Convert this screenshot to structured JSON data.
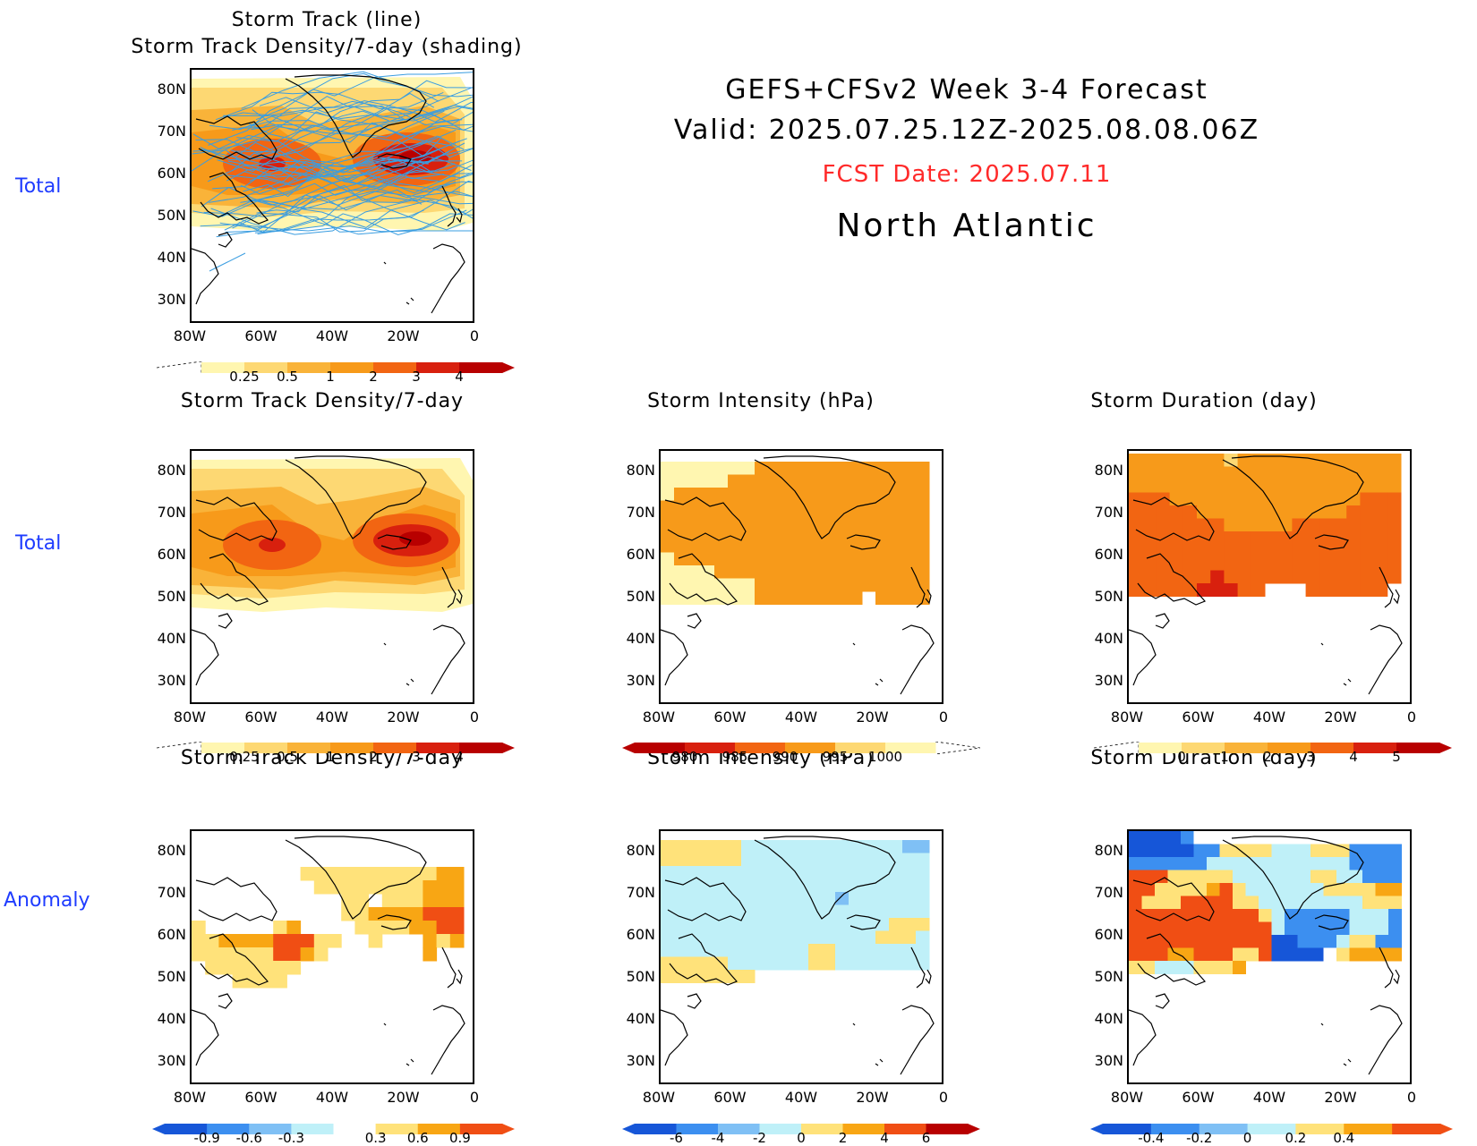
{
  "header": {
    "line1": "GEFS+CFSv2 Week 3-4 Forecast",
    "line2": "Valid: 2025.07.25.12Z-2025.08.08.06Z",
    "fcst": "FCST Date: 2025.07.11",
    "region": "North Atlantic"
  },
  "row_labels": {
    "r1": "Total",
    "r2": "Total",
    "r3": "Anomaly"
  },
  "axes": {
    "lat": [
      "80N",
      "70N",
      "60N",
      "50N",
      "40N",
      "30N"
    ],
    "lon": [
      "80W",
      "60W",
      "40W",
      "20W",
      "0"
    ]
  },
  "panels": {
    "p1": {
      "title1": "Storm Track (line)",
      "title2": "Storm Track Density/7-day (shading)"
    },
    "p2": {
      "title": "Storm Track Density/7-day"
    },
    "p3": {
      "title": "Storm Intensity (hPa)"
    },
    "p4": {
      "title": "Storm Duration (day)"
    },
    "p5": {
      "title": "Storm Track Density/7-day"
    },
    "p6": {
      "title": "Storm Intensity (hPa)"
    },
    "p7": {
      "title": "Storm Duration (day)"
    }
  },
  "colorbars": {
    "density": [
      "0.25",
      "0.5",
      "1",
      "2",
      "3",
      "4"
    ],
    "intensity": [
      "980",
      "985",
      "990",
      "995",
      "1000"
    ],
    "duration": [
      "0",
      "1",
      "2",
      "3",
      "4",
      "5"
    ],
    "density_anom": [
      "-0.9",
      "-0.6",
      "-0.3",
      "0.3",
      "0.6",
      "0.9"
    ],
    "intensity_anom": [
      "-6",
      "-4",
      "-2",
      "0",
      "2",
      "4",
      "6"
    ],
    "duration_anom": [
      "-0.4",
      "-0.2",
      "0",
      "0.2",
      "0.4"
    ]
  },
  "colors": {
    "total_scale": [
      "#fff6b0",
      "#fdd873",
      "#f9b339",
      "#f79a1a",
      "#f26512",
      "#d8200e",
      "#b80000"
    ],
    "intensity_scale": [
      "#b80000",
      "#d8200e",
      "#f26512",
      "#f79a1a",
      "#fdd873",
      "#fff6b0"
    ],
    "anom_scale": [
      "#1656d8",
      "#3c8ff0",
      "#7fc0f5",
      "#bff0f8",
      "#ffffff",
      "#ffe27a",
      "#f8a614",
      "#f04e14",
      "#b80000"
    ],
    "track_line": "#3a9de0",
    "row_label": "#1f3cff",
    "fcst": "#ff2a2a"
  }
}
